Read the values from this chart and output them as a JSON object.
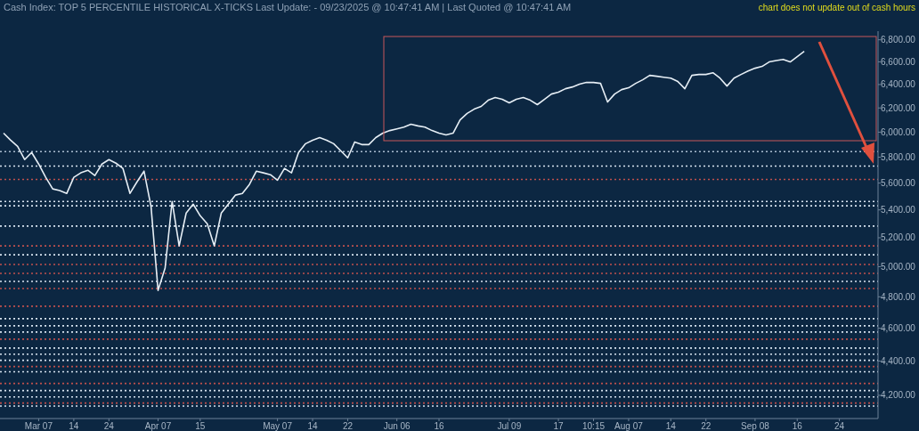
{
  "chart_data": {
    "type": "line",
    "title": "Cash Index: TOP 5 PERCENTILE HISTORICAL X-TICKS Last Update:  - 09/23/2025 @ 10:47:41 AM | Last Quoted @ 10:47:41 AM",
    "annotations": [
      "chart does not update out of cash hours"
    ],
    "categories": [
      null,
      null,
      null,
      null,
      null,
      "Mar 07",
      null,
      null,
      null,
      null,
      "14",
      null,
      null,
      null,
      null,
      "24",
      null,
      null,
      null,
      null,
      null,
      null,
      "Apr 07",
      null,
      null,
      null,
      null,
      null,
      "15",
      null,
      null,
      null,
      null,
      null,
      null,
      null,
      null,
      null,
      null,
      "May 07",
      null,
      null,
      null,
      null,
      "14",
      null,
      null,
      null,
      null,
      "22",
      null,
      null,
      null,
      null,
      null,
      null,
      "Jun 06",
      null,
      null,
      null,
      null,
      null,
      "16",
      null,
      null,
      null,
      null,
      null,
      null,
      null,
      null,
      null,
      "Jul 09",
      null,
      null,
      null,
      null,
      null,
      null,
      "17",
      null,
      null,
      null,
      null,
      "10:15",
      null,
      null,
      null,
      null,
      "Aug 07",
      null,
      null,
      null,
      null,
      null,
      "14",
      null,
      null,
      null,
      null,
      "22",
      null,
      null,
      null,
      null,
      null,
      null,
      "Sep 08",
      null,
      null,
      null,
      null,
      null,
      "16",
      null,
      null,
      null,
      null,
      null,
      "24",
      null,
      null,
      null,
      null,
      null
    ],
    "series": [
      {
        "color": "#e6eef5",
        "values": [
          5992,
          5935,
          5886,
          5781,
          5837,
          5746,
          5644,
          5556,
          5543,
          5522,
          5644,
          5678,
          5698,
          5657,
          5746,
          5781,
          5753,
          5712,
          5522,
          5609,
          5691,
          5423,
          4842,
          4991,
          5462,
          5143,
          5377,
          5442,
          5357,
          5300,
          5143,
          5377,
          5442,
          5509,
          5522,
          5589,
          5691,
          5678,
          5664,
          5622,
          5712,
          5678,
          5837,
          5907,
          5935,
          5956,
          5935,
          5907,
          5851,
          5795,
          5921,
          5900,
          5900,
          5956,
          5992,
          6013,
          6027,
          6041,
          6065,
          6051,
          6041,
          6013,
          5992,
          5978,
          5992,
          6101,
          6154,
          6190,
          6213,
          6265,
          6288,
          6273,
          6243,
          6273,
          6288,
          6265,
          6228,
          6273,
          6318,
          6334,
          6364,
          6379,
          6403,
          6418,
          6418,
          6410,
          6250,
          6318,
          6356,
          6372,
          6410,
          6441,
          6480,
          6472,
          6464,
          6456,
          6426,
          6364,
          6480,
          6488,
          6488,
          6503,
          6456,
          6387,
          6456,
          6488,
          6518,
          6543,
          6559,
          6599,
          6612,
          6622,
          6599,
          6646,
          6694,
          null,
          null,
          null,
          null,
          null,
          null,
          null,
          null,
          null,
          null
        ]
      }
    ],
    "log": "y",
    "ylim": [
      4070,
      6880
    ],
    "yticks": [
      {
        "value": 4200,
        "label": "4,200.00"
      },
      {
        "value": 4400,
        "label": "4,400.00"
      },
      {
        "value": 4600,
        "label": "4,600.00"
      },
      {
        "value": 4800,
        "label": "4,800.00"
      },
      {
        "value": 5000,
        "label": "5,000.00"
      },
      {
        "value": 5200,
        "label": "5,200.00"
      },
      {
        "value": 5400,
        "label": "5,400.00"
      },
      {
        "value": 5600,
        "label": "5,600.00"
      },
      {
        "value": 5800,
        "label": "5,800.00"
      },
      {
        "value": 6000,
        "label": "6,000.00"
      },
      {
        "value": 6200,
        "label": "6,200.00"
      },
      {
        "value": 6400,
        "label": "6,400.00"
      },
      {
        "value": 6600,
        "label": "6,600.00"
      },
      {
        "value": 6800,
        "label": "6,800.00"
      }
    ],
    "ref_lines": [
      {
        "axis": "y",
        "value": 5844,
        "color": "#a9bccf",
        "line_style": "dotted"
      },
      {
        "axis": "y",
        "value": 5730,
        "color": "#d8e4f0",
        "line_style": "dotted"
      },
      {
        "axis": "y",
        "value": 5628,
        "color": "#c0504d",
        "line_style": "dotted"
      },
      {
        "axis": "y",
        "value": 5462,
        "color": "#d8e4f0",
        "line_style": "dotted"
      },
      {
        "axis": "y",
        "value": 5430,
        "color": "#d8e4f0",
        "line_style": "dotted"
      },
      {
        "axis": "y",
        "value": 5283,
        "color": "#d8e4f0",
        "line_style": "dotted"
      },
      {
        "axis": "y",
        "value": 5143,
        "color": "#c0504d",
        "line_style": "dotted"
      },
      {
        "axis": "y",
        "value": 5081,
        "color": "#d8e4f0",
        "line_style": "dotted"
      },
      {
        "axis": "y",
        "value": 5015,
        "color": "#c0504d",
        "line_style": "dotted"
      },
      {
        "axis": "y",
        "value": 4955,
        "color": "#c0504d",
        "line_style": "dotted"
      },
      {
        "axis": "y",
        "value": 4901,
        "color": "#d8e4f0",
        "line_style": "dotted"
      },
      {
        "axis": "y",
        "value": 4854,
        "color": "#c0504d",
        "line_style": "dotted"
      },
      {
        "axis": "y",
        "value": 4739,
        "color": "#c0504d",
        "line_style": "dotted"
      },
      {
        "axis": "y",
        "value": 4660,
        "color": "#d8e4f0",
        "line_style": "dotted"
      },
      {
        "axis": "y",
        "value": 4615,
        "color": "#d8e4f0",
        "line_style": "dotted"
      },
      {
        "axis": "y",
        "value": 4576,
        "color": "#d8e4f0",
        "line_style": "dotted"
      },
      {
        "axis": "y",
        "value": 4532,
        "color": "#c0504d",
        "line_style": "dotted"
      },
      {
        "axis": "y",
        "value": 4478,
        "color": "#d8e4f0",
        "line_style": "dotted"
      },
      {
        "axis": "y",
        "value": 4441,
        "color": "#d8e4f0",
        "line_style": "dotted"
      },
      {
        "axis": "y",
        "value": 4404,
        "color": "#d8e4f0",
        "line_style": "dotted"
      },
      {
        "axis": "y",
        "value": 4367,
        "color": "#c0504d",
        "line_style": "dotted"
      },
      {
        "axis": "y",
        "value": 4336,
        "color": "#d8e4f0",
        "line_style": "dotted"
      },
      {
        "axis": "y",
        "value": 4268,
        "color": "#c0504d",
        "line_style": "dotted"
      },
      {
        "axis": "y",
        "value": 4227,
        "color": "#d8e4f0",
        "line_style": "dotted"
      },
      {
        "axis": "y",
        "value": 4191,
        "color": "#d8e4f0",
        "line_style": "dotted"
      },
      {
        "axis": "y",
        "value": 4156,
        "color": "#c0504d",
        "line_style": "dotted"
      },
      {
        "axis": "y",
        "value": 4139,
        "color": "#d8e4f0",
        "line_style": "dotted"
      }
    ],
    "grid": false,
    "marker": "none",
    "line_style": "solid"
  }
}
